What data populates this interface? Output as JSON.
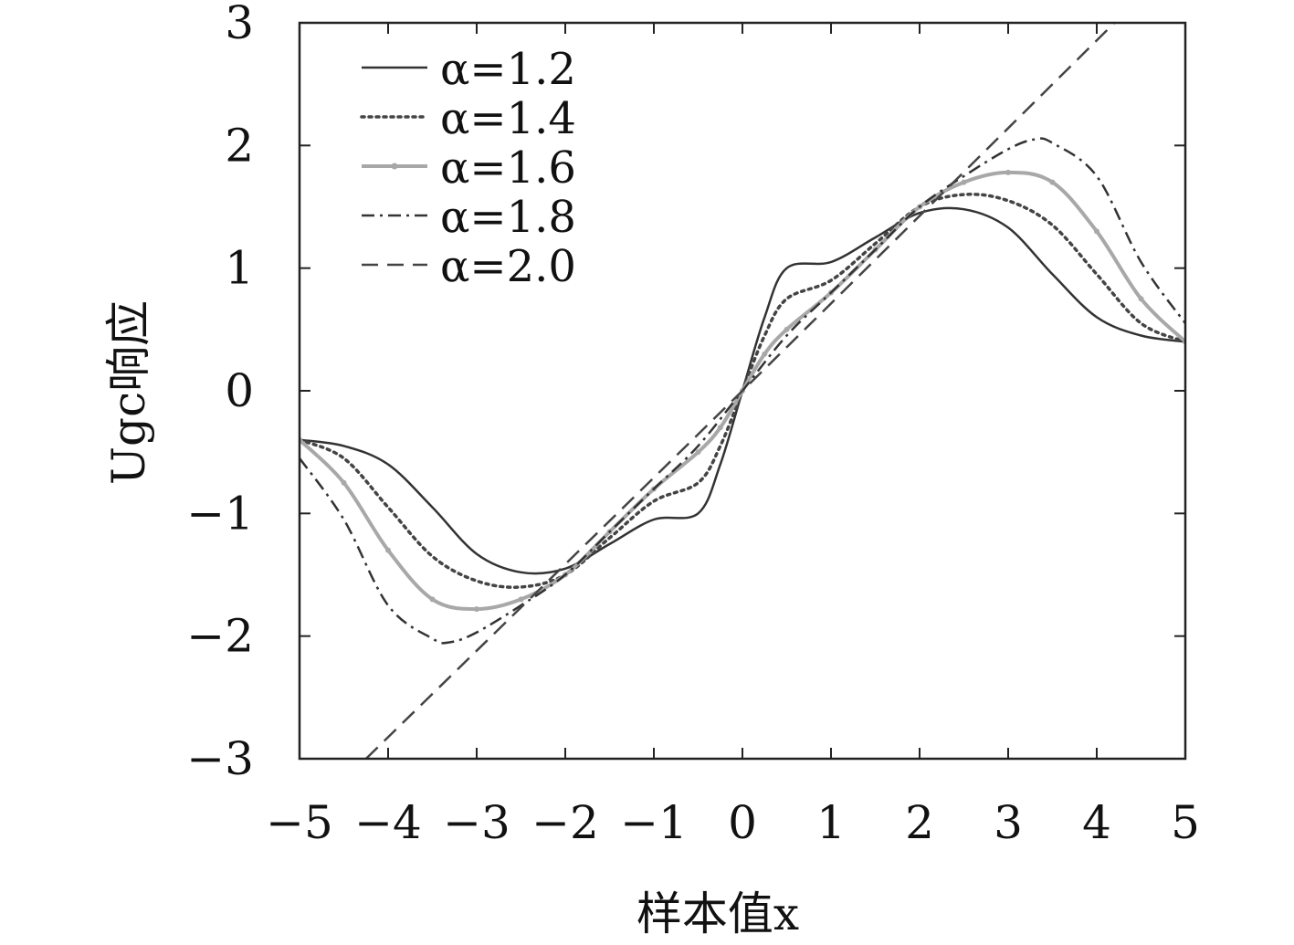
{
  "chart_data": {
    "type": "line",
    "title": "",
    "xlabel": "样本值x",
    "ylabel": "Ugc响应",
    "xlim": [
      -5,
      5
    ],
    "ylim": [
      -3,
      3
    ],
    "xticks": [
      -5,
      -4,
      -3,
      -2,
      -1,
      0,
      1,
      2,
      3,
      4,
      5
    ],
    "yticks": [
      -3,
      -2,
      -1,
      0,
      1,
      2,
      3
    ],
    "xtick_labels": [
      "−5",
      "−4",
      "−3",
      "−2",
      "−1",
      "0",
      "1",
      "2",
      "3",
      "4",
      "5"
    ],
    "ytick_labels": [
      "−3",
      "−2",
      "−1",
      "0",
      "1",
      "2",
      "3"
    ],
    "grid": false,
    "legend_position": "top-left",
    "series": [
      {
        "name": "α=1.2",
        "color": "#333333",
        "dash": "solid",
        "x": [
          -5,
          -4.5,
          -4,
          -3.5,
          -3,
          -2.5,
          -2,
          -1.5,
          -1,
          -0.5,
          -0.25,
          0,
          0.25,
          0.5,
          1,
          1.5,
          2,
          2.5,
          3,
          3.5,
          4,
          4.5,
          5
        ],
        "y": [
          -0.4,
          -0.45,
          -0.6,
          -0.95,
          -1.33,
          -1.48,
          -1.45,
          -1.25,
          -1.05,
          -1.0,
          -0.6,
          0.0,
          0.6,
          1.0,
          1.05,
          1.25,
          1.45,
          1.48,
          1.33,
          0.95,
          0.6,
          0.45,
          0.4
        ]
      },
      {
        "name": "α=1.4",
        "color": "#444444",
        "dash": "dotted",
        "x": [
          -5,
          -4.5,
          -4,
          -3.5,
          -3,
          -2.5,
          -2,
          -1.5,
          -1,
          -0.5,
          -0.25,
          0,
          0.25,
          0.5,
          1,
          1.5,
          2,
          2.5,
          3,
          3.5,
          4,
          4.5,
          5
        ],
        "y": [
          -0.4,
          -0.55,
          -0.95,
          -1.35,
          -1.55,
          -1.6,
          -1.5,
          -1.2,
          -0.9,
          -0.75,
          -0.45,
          0.0,
          0.45,
          0.75,
          0.9,
          1.2,
          1.5,
          1.6,
          1.55,
          1.35,
          0.95,
          0.55,
          0.4
        ]
      },
      {
        "name": "α=1.6",
        "color": "#a8a8a8",
        "dash": "solid-marker",
        "x": [
          -5,
          -4.5,
          -4,
          -3.5,
          -3,
          -2.5,
          -2,
          -1.5,
          -1,
          -0.5,
          -0.25,
          0,
          0.25,
          0.5,
          1,
          1.5,
          2,
          2.5,
          3,
          3.5,
          4,
          4.5,
          5
        ],
        "y": [
          -0.4,
          -0.75,
          -1.3,
          -1.7,
          -1.78,
          -1.7,
          -1.5,
          -1.15,
          -0.8,
          -0.5,
          -0.3,
          0.0,
          0.3,
          0.5,
          0.8,
          1.15,
          1.5,
          1.7,
          1.78,
          1.7,
          1.3,
          0.75,
          0.4
        ]
      },
      {
        "name": "α=1.8",
        "color": "#333333",
        "dash": "dashdot",
        "x": [
          -5,
          -4.5,
          -4,
          -3.5,
          -3.3,
          -3,
          -2.5,
          -2,
          -1.5,
          -1,
          -0.5,
          0,
          0.5,
          1,
          1.5,
          2,
          2.5,
          3,
          3.3,
          3.5,
          4,
          4.5,
          5
        ],
        "y": [
          -0.55,
          -1.05,
          -1.75,
          -2.02,
          -2.05,
          -1.97,
          -1.75,
          -1.5,
          -1.15,
          -0.8,
          -0.45,
          0.0,
          0.45,
          0.8,
          1.15,
          1.5,
          1.75,
          1.97,
          2.05,
          2.02,
          1.75,
          1.05,
          0.55
        ]
      },
      {
        "name": "α=2.0",
        "color": "#444444",
        "dash": "dashed",
        "x": [
          -4.25,
          0,
          4.2
        ],
        "y": [
          -3.0,
          0.0,
          3.0
        ]
      }
    ]
  }
}
